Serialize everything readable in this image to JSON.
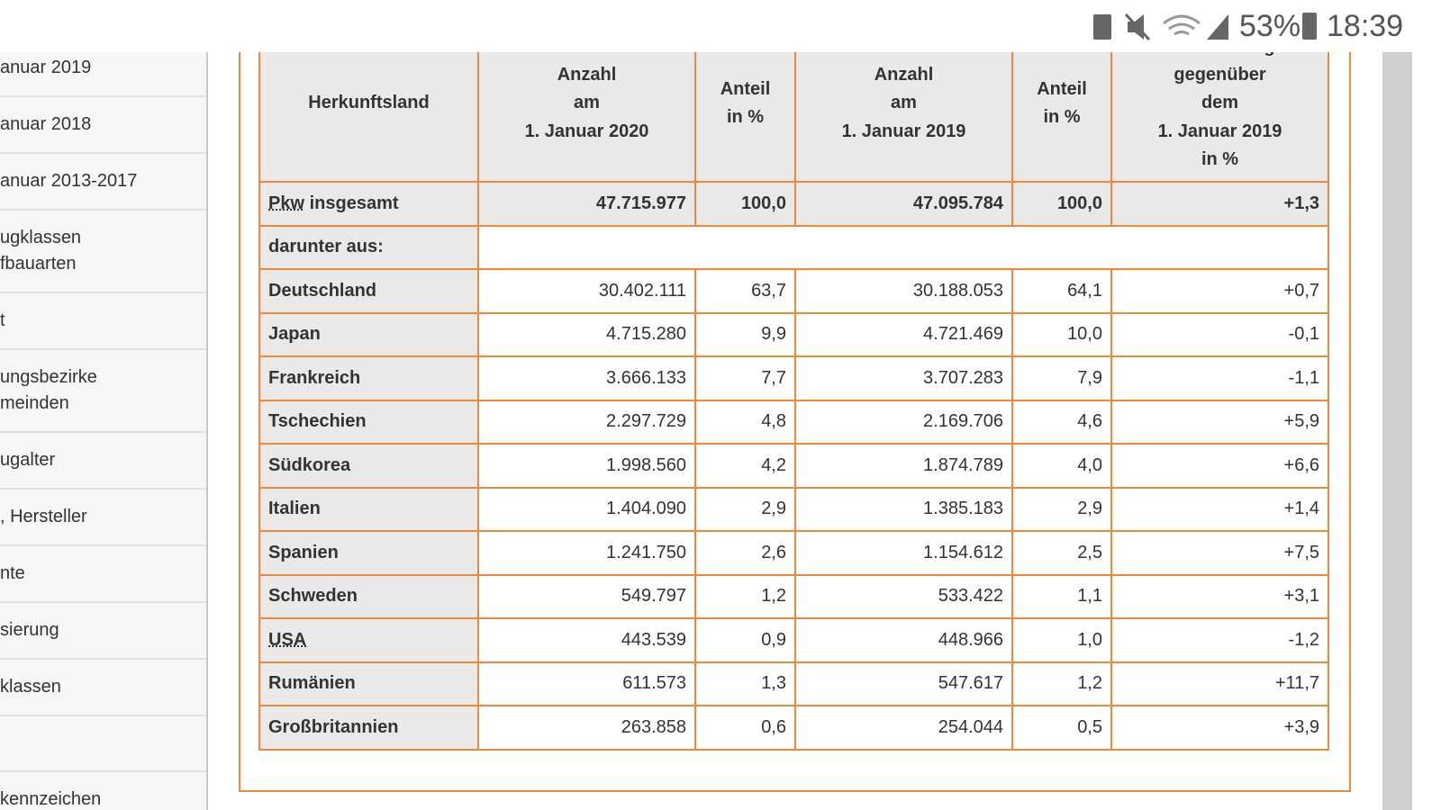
{
  "status_bar": {
    "battery": "53%",
    "time": "18:39"
  },
  "sidebar": {
    "items": [
      [
        "anuar 2019"
      ],
      [
        "anuar 2018"
      ],
      [
        "anuar 2013-2017"
      ],
      [
        "ugklassen",
        "fbauarten"
      ],
      [
        "t"
      ],
      [
        "ungsbezirke",
        "meinden"
      ],
      [
        "ugalter"
      ],
      [
        ", Hersteller"
      ],
      [
        "nte"
      ],
      [
        "sierung"
      ],
      [
        "klassen"
      ],
      [
        "kennzeichen"
      ]
    ]
  },
  "table": {
    "header": [
      [
        "Herkunftsland"
      ],
      [
        "Anzahl",
        "am",
        "1. Januar 2020"
      ],
      [
        "Anteil",
        "in %"
      ],
      [
        "Anzahl",
        "am",
        "1. Januar 2019"
      ],
      [
        "Anteil",
        "in %"
      ],
      [
        "Veränderung",
        "gegenüber",
        "dem",
        "1. Januar 2019",
        "in %"
      ]
    ],
    "total": {
      "label": [
        "Pkw",
        "insgesamt"
      ],
      "values": [
        "47.715.977",
        "100,0",
        "47.095.784",
        "100,0",
        "+1,3"
      ]
    },
    "subheading": "darunter aus:",
    "rows": [
      {
        "cells": [
          "Deutschland",
          "30.402.111",
          "63,7",
          "30.188.053",
          "64,1",
          "+0,7"
        ]
      },
      {
        "cells": [
          "Japan",
          "4.715.280",
          "9,9",
          "4.721.469",
          "10,0",
          "-0,1"
        ]
      },
      {
        "cells": [
          "Frankreich",
          "3.666.133",
          "7,7",
          "3.707.283",
          "7,9",
          "-1,1"
        ]
      },
      {
        "cells": [
          "Tschechien",
          "2.297.729",
          "4,8",
          "2.169.706",
          "4,6",
          "+5,9"
        ]
      },
      {
        "cells": [
          "Südkorea",
          "1.998.560",
          "4,2",
          "1.874.789",
          "4,0",
          "+6,6"
        ]
      },
      {
        "cells": [
          "Italien",
          "1.404.090",
          "2,9",
          "1.385.183",
          "2,9",
          "+1,4"
        ]
      },
      {
        "cells": [
          "Spanien",
          "1.241.750",
          "2,6",
          "1.154.612",
          "2,5",
          "+7,5"
        ]
      },
      {
        "cells": [
          "Schweden",
          "549.797",
          "1,2",
          "533.422",
          "1,1",
          "+3,1"
        ]
      },
      {
        "cells": [
          "USA",
          "443.539",
          "0,9",
          "448.966",
          "1,0",
          "-1,2"
        ],
        "abbr": true
      },
      {
        "cells": [
          "Rumänien",
          "611.573",
          "1,3",
          "547.617",
          "1,2",
          "+11,7"
        ]
      },
      {
        "cells": [
          "Großbritannien",
          "263.858",
          "0,6",
          "254.044",
          "0,5",
          "+3,9"
        ]
      }
    ]
  }
}
